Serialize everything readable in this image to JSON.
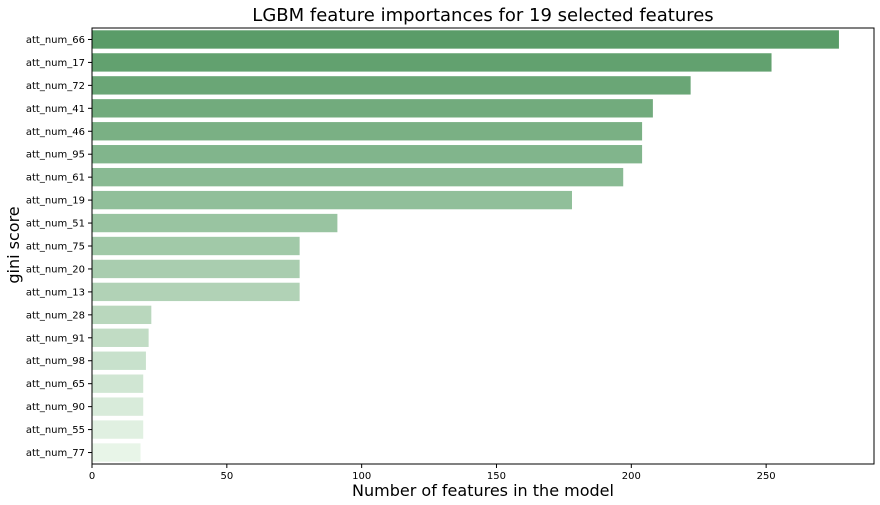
{
  "chart_data": {
    "type": "bar",
    "orientation": "horizontal",
    "title": "LGBM feature importances for 19 selected features",
    "xlabel": "Number of features in the model",
    "ylabel": "gini score",
    "xlim": [
      0,
      290
    ],
    "xticks": [
      0,
      50,
      100,
      150,
      200,
      250
    ],
    "grid": false,
    "categories": [
      "att_num_66",
      "att_num_17",
      "att_num_72",
      "att_num_41",
      "att_num_46",
      "att_num_95",
      "att_num_61",
      "att_num_19",
      "att_num_51",
      "att_num_75",
      "att_num_20",
      "att_num_13",
      "att_num_28",
      "att_num_91",
      "att_num_98",
      "att_num_65",
      "att_num_90",
      "att_num_55",
      "att_num_77"
    ],
    "values": [
      277,
      252,
      222,
      208,
      204,
      204,
      197,
      178,
      91,
      77,
      77,
      77,
      22,
      21,
      20,
      19,
      19,
      19,
      18
    ],
    "colors": {
      "start": "#5a9c68",
      "end": "#e8f5e8"
    }
  }
}
